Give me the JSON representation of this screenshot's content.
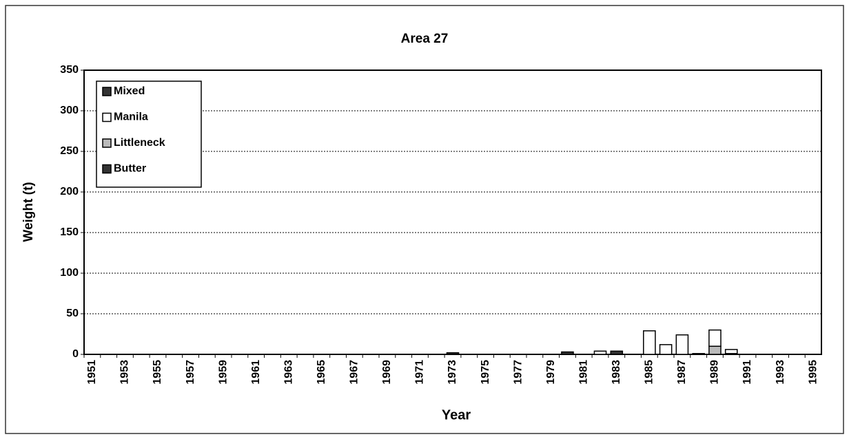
{
  "chart_data": {
    "type": "bar",
    "stacked": true,
    "title": "Area 27",
    "x_label": "Year",
    "y_label": "Weight (t)",
    "categories": [
      "1951",
      null,
      "1953",
      null,
      "1955",
      null,
      "1957",
      null,
      "1959",
      null,
      "1961",
      null,
      "1963",
      null,
      "1965",
      null,
      "1967",
      null,
      "1969",
      null,
      "1971",
      null,
      "1973",
      null,
      "1975",
      null,
      "1977",
      null,
      "1979",
      null,
      "1981",
      null,
      "1983",
      null,
      "1985",
      null,
      "1987",
      null,
      "1989",
      null,
      "1991",
      null,
      "1993",
      null,
      "1995"
    ],
    "series": [
      {
        "name": "Butter",
        "color": "#333333",
        "values": [
          0,
          0,
          0,
          0,
          0,
          0,
          0,
          0,
          0,
          0,
          0,
          0,
          0,
          0,
          0,
          0,
          0,
          0,
          0,
          0,
          0,
          0,
          2,
          0,
          0,
          0,
          0,
          0,
          0,
          3,
          0,
          0,
          4,
          0,
          0,
          0,
          0,
          1,
          0,
          1,
          0,
          0,
          0,
          0,
          0
        ]
      },
      {
        "name": "Littleneck",
        "color": "#bbbbbb",
        "values": [
          0,
          0,
          0,
          0,
          0,
          0,
          0,
          0,
          0,
          0,
          0,
          0,
          0,
          0,
          0,
          0,
          0,
          0,
          0,
          0,
          0,
          0,
          0,
          0,
          0,
          0,
          0,
          0,
          0,
          0,
          0,
          0,
          0,
          0,
          0,
          0,
          0,
          0,
          10,
          0,
          0,
          0,
          0,
          0,
          0
        ]
      },
      {
        "name": "Manila",
        "color": "#ffffff",
        "values": [
          0,
          0,
          0,
          0,
          0,
          0,
          0,
          0,
          0,
          0,
          0,
          0,
          0,
          0,
          0,
          0,
          0,
          0,
          0,
          0,
          0,
          0,
          0,
          0,
          0,
          0,
          0,
          0,
          0,
          0,
          0,
          4,
          0,
          0,
          29,
          12,
          24,
          0,
          20,
          5,
          0,
          0,
          0,
          0,
          0
        ]
      },
      {
        "name": "Mixed",
        "color": "#333333",
        "values": [
          0,
          0,
          0,
          0,
          0,
          0,
          0,
          0,
          0,
          0,
          0,
          0,
          0,
          0,
          0,
          0,
          0,
          0,
          0,
          0,
          0,
          0,
          0,
          0,
          0,
          0,
          0,
          0,
          0,
          0,
          0,
          0,
          0,
          0,
          0,
          0,
          0,
          0,
          0,
          0,
          0,
          0,
          0,
          0,
          0
        ]
      }
    ],
    "ylim": [
      0,
      350
    ],
    "yticks": [
      0,
      50,
      100,
      150,
      200,
      250,
      300,
      350
    ],
    "grid": true,
    "legend": "upper left"
  }
}
